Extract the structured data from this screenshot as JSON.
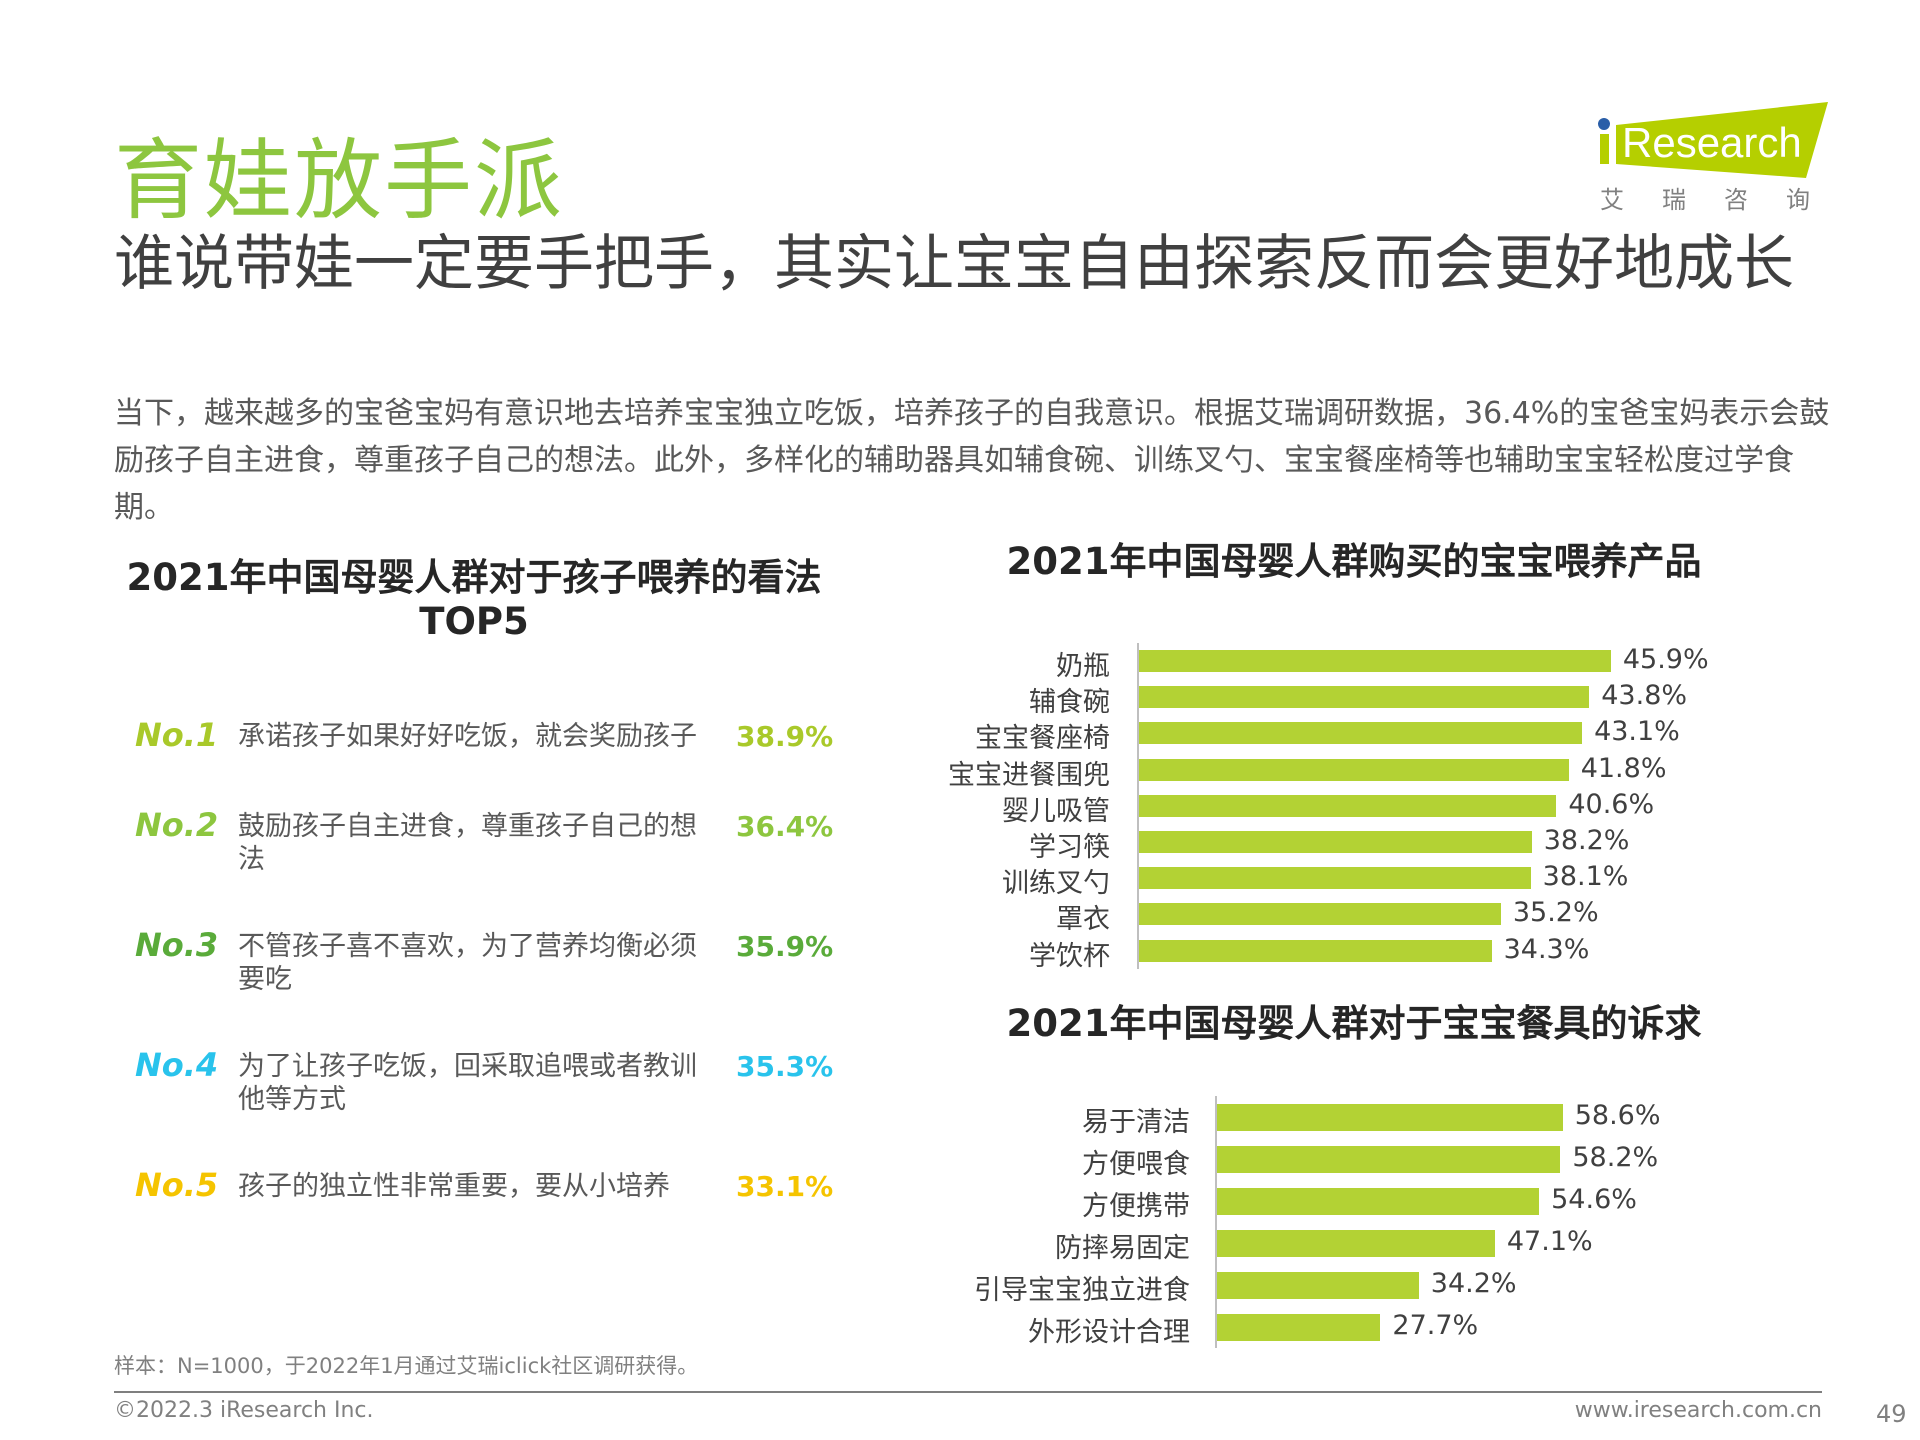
{
  "header": {
    "title": "育娃放手派",
    "subtitle": "谁说带娃一定要手把手，其实让宝宝自由探索反而会更好地成长",
    "paragraph": "当下，越来越多的宝爸宝妈有意识地去培养宝宝独立吃饭，培养孩子的自我意识。根据艾瑞调研数据，36.4%的宝爸宝妈表示会鼓励孩子自主进食，尊重孩子自己的想法。此外，多样化的辅助器具如辅食碗、训练叉勺、宝宝餐座椅等也辅助宝宝轻松度过学食期。"
  },
  "logo": {
    "brand": "iResearch",
    "cn": "艾 瑞 咨 询",
    "color": "#b5cf00",
    "dot_color": "#2a5ea8"
  },
  "left_panel": {
    "title": "2021年中国母婴人群对于孩子喂养的看法TOP5",
    "items": [
      {
        "rank": "No.1",
        "text": "承诺孩子如果好好吃饭，就会奖励孩子",
        "value": "38.9%",
        "color": "#a9c92a"
      },
      {
        "rank": "No.2",
        "text": "鼓励孩子自主进食，尊重孩子自己的想法",
        "value": "36.4%",
        "color": "#8dc63f"
      },
      {
        "rank": "No.3",
        "text": "不管孩子喜不喜欢，为了营养均衡必须要吃",
        "value": "35.9%",
        "color": "#5aab3a"
      },
      {
        "rank": "No.4",
        "text": "为了让孩子吃饭，回采取追喂或者教训他等方式",
        "value": "35.3%",
        "color": "#29c3ec"
      },
      {
        "rank": "No.5",
        "text": "孩子的独立性非常重要，要从小培养",
        "value": "33.1%",
        "color": "#f5c400"
      }
    ]
  },
  "chart_data": [
    {
      "type": "bar",
      "orientation": "horizontal",
      "title": "2021年中国母婴人群购买的宝宝喂养产品",
      "categories": [
        "奶瓶",
        "辅食碗",
        "宝宝餐座椅",
        "宝宝进餐围兜",
        "婴儿吸管",
        "学习筷",
        "训练叉勺",
        "罩衣",
        "学饮杯"
      ],
      "values": [
        45.9,
        43.8,
        43.1,
        41.8,
        40.6,
        38.2,
        38.1,
        35.2,
        34.3
      ],
      "unit": "%",
      "bar_color": "#b3d234"
    },
    {
      "type": "bar",
      "orientation": "horizontal",
      "title": "2021年中国母婴人群对于宝宝餐具的诉求",
      "categories": [
        "易于清洁",
        "方便喂食",
        "方便携带",
        "防摔易固定",
        "引导宝宝独立进食",
        "外形设计合理"
      ],
      "values": [
        58.6,
        58.2,
        54.6,
        47.1,
        34.2,
        27.7
      ],
      "unit": "%",
      "bar_color": "#b3d234"
    }
  ],
  "footer": {
    "note": "样本：N=1000，于2022年1月通过艾瑞iclick社区调研获得。",
    "copyright": "©2022.3 iResearch Inc.",
    "url": "www.iresearch.com.cn",
    "page": "49"
  }
}
